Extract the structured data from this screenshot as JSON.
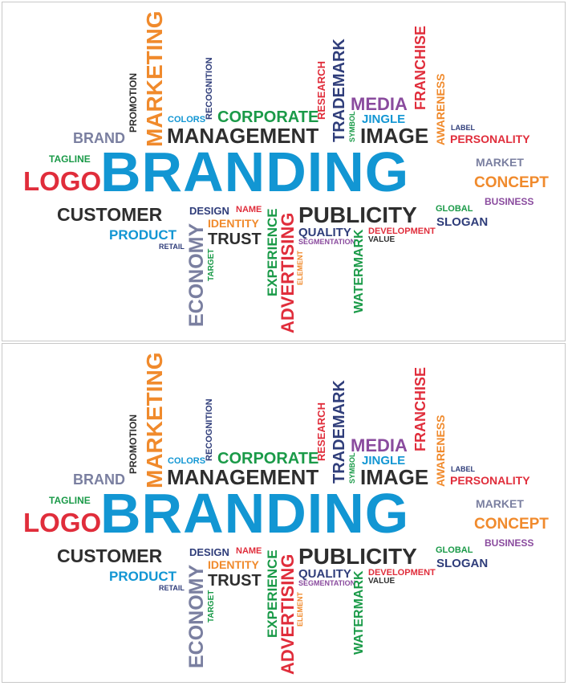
{
  "colors": {
    "blue": "#1296d3",
    "red": "#e02d3b",
    "orange": "#f08a2c",
    "green": "#1a9a48",
    "navy": "#2f3d7a",
    "purple": "#8a4b9e",
    "dark": "#2e2e2e",
    "gray": "#7a7fa0"
  },
  "words": {
    "branding": "BRANDING",
    "logo": "LOGO",
    "tagline": "TAGLINE",
    "brand": "BRAND",
    "promotion": "PROMOTION",
    "marketing": "MARKETING",
    "recognition": "RECOGNITION",
    "colors": "COLORS",
    "corporate": "CORPORATE",
    "management": "MANAGEMENT",
    "research": "RESEARCH",
    "trademark": "TRADEMARK",
    "symbol": "SYMBOL",
    "media": "MEDIA",
    "jingle": "JINGLE",
    "image": "IMAGE",
    "franchise": "FRANCHISE",
    "awareness": "AWARENESS",
    "label": "LABEL",
    "personality": "PERSONALITY",
    "market": "MARKET",
    "concept": "CONCEPT",
    "business": "BUSINESS",
    "customer": "CUSTOMER",
    "product": "PRODUCT",
    "retail": "RETAIL",
    "design": "DESIGN",
    "name": "NAME",
    "identity": "IDENTITY",
    "trust": "TRUST",
    "economy": "ECONOMY",
    "target": "TARGET",
    "experience": "EXPERIENCE",
    "advertising": "ADVERTISING",
    "element": "ELEMENT",
    "publicity": "PUBLICITY",
    "quality": "QUALITY",
    "segmentation": "SEGMENTATION",
    "watermark": "WATERMARK",
    "development": "DEVELOPMENT",
    "value": "VALUE",
    "global": "GLOBAL",
    "slogan": "SLOGAN"
  }
}
